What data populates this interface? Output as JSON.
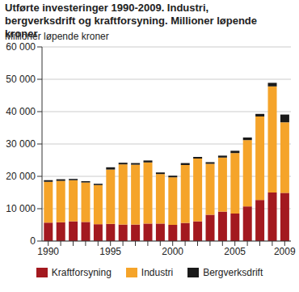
{
  "chart_data": {
    "type": "bar",
    "title": "Utførte investeringer 1990-2009. Industri, bergverksdrift og kraftforsyning. Millioner løpende kroner",
    "y_label": "Millioner løpende kroner",
    "stacked": true,
    "grid": true,
    "legend": "bottom",
    "categories": [
      "1990",
      null,
      null,
      null,
      null,
      "1995",
      null,
      null,
      null,
      null,
      "2000",
      null,
      null,
      null,
      null,
      "2005",
      null,
      null,
      null,
      "2009"
    ],
    "series": [
      {
        "name": "Kraftforsyning",
        "color": "#a3191f",
        "values": [
          5700,
          5800,
          6100,
          5900,
          5200,
          5300,
          5100,
          5100,
          5400,
          5400,
          5000,
          5600,
          6100,
          8100,
          9100,
          8500,
          10700,
          12700,
          15000,
          14900
        ]
      },
      {
        "name": "Industri",
        "color": "#f5a42a",
        "values": [
          12600,
          12800,
          12700,
          12200,
          12100,
          16800,
          18600,
          18500,
          18900,
          15300,
          14700,
          17900,
          19400,
          15800,
          16700,
          18700,
          20500,
          25800,
          32800,
          21800
        ]
      },
      {
        "name": "Bergverksdrift",
        "color": "#1a1a1a",
        "values": [
          500,
          500,
          400,
          400,
          400,
          700,
          500,
          500,
          600,
          500,
          500,
          600,
          500,
          500,
          600,
          700,
          800,
          800,
          1100,
          2400
        ]
      }
    ],
    "ylim": [
      0,
      60000
    ],
    "yticks": [
      0,
      {
        "value": 10000,
        "label": "10 000"
      },
      {
        "value": 20000,
        "label": "20 000"
      },
      {
        "value": 30000,
        "label": "30 000"
      },
      {
        "value": 40000,
        "label": "40 000"
      },
      {
        "value": 50000,
        "label": "50 000"
      },
      {
        "value": 60000,
        "label": "60 000"
      }
    ]
  }
}
